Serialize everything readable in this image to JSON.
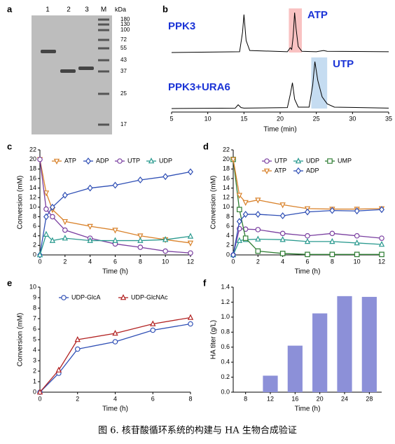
{
  "gel": {
    "label": "a",
    "lanes": [
      "1",
      "2",
      "3",
      "M"
    ],
    "unit": "kDa",
    "markers": [
      180,
      130,
      100,
      72,
      55,
      43,
      37,
      25,
      17
    ]
  },
  "caption": "图 6. 核苷酸循环系统的构建与 HA 生物合成验证",
  "chart_data": [
    {
      "type": "chromatogram",
      "label": "b",
      "xlabel": "Time (min)",
      "xlim": [
        5,
        35
      ],
      "xticks": [
        5,
        10,
        15,
        20,
        25,
        30,
        35
      ],
      "series": [
        {
          "name": "PPK3",
          "color": "#000000",
          "x": [
            5,
            14.4,
            14.8,
            15,
            15.3,
            15.8,
            21,
            21.4,
            21.6,
            21.8,
            22,
            22.2,
            22.5,
            23,
            25,
            26,
            26.5,
            35
          ],
          "values": [
            0,
            0.02,
            0.5,
            0.95,
            0.3,
            0.05,
            0.02,
            0.12,
            0.08,
            0.4,
            1.0,
            0.6,
            0.15,
            0.03,
            0.02,
            0.05,
            0.03,
            0.02
          ]
        },
        {
          "name": "PPK3+URA6",
          "color": "#000000",
          "x": [
            5,
            13.8,
            14.2,
            14.6,
            15,
            21,
            21.4,
            21.7,
            22,
            22.5,
            24,
            24.5,
            24.8,
            25.2,
            25.8,
            26.5,
            27.5,
            35
          ],
          "values": [
            0,
            0.01,
            0.08,
            0.02,
            0.01,
            0.02,
            0.3,
            0.55,
            0.2,
            0.03,
            0.03,
            0.5,
            1.0,
            0.6,
            0.25,
            0.1,
            0.03,
            0.01
          ]
        }
      ],
      "highlights": [
        {
          "label": "ATP",
          "xrange": [
            21.2,
            23
          ],
          "color": "#f7b3b3"
        },
        {
          "label": "UTP",
          "xrange": [
            24.3,
            26.5
          ],
          "color": "#b7d3ee"
        }
      ]
    },
    {
      "type": "line",
      "label": "c",
      "xlabel": "Time (h)",
      "ylabel": "Conversion (mM)",
      "xlim": [
        0,
        12
      ],
      "xticks": [
        0,
        2,
        4,
        6,
        8,
        10,
        12
      ],
      "ylim": [
        0,
        22
      ],
      "yticks": [
        0,
        2,
        4,
        6,
        8,
        10,
        12,
        14,
        16,
        18,
        20,
        22
      ],
      "x": [
        0,
        0.5,
        1,
        2,
        4,
        6,
        8,
        10,
        12
      ],
      "series": [
        {
          "name": "ATP",
          "color": "#d9822b",
          "marker": "triangle-down",
          "values": [
            20,
            13,
            9.5,
            7,
            6,
            5.2,
            4,
            3.2,
            2.5
          ]
        },
        {
          "name": "ADP",
          "color": "#2f4fb5",
          "marker": "diamond",
          "values": [
            0,
            8,
            10,
            12.5,
            14,
            14.6,
            15.7,
            16.4,
            17.4
          ]
        },
        {
          "name": "UTP",
          "color": "#7a3fa0",
          "marker": "circle",
          "values": [
            20,
            9.6,
            8,
            5.2,
            3.5,
            2.3,
            1.6,
            0.8,
            0.4
          ]
        },
        {
          "name": "UDP",
          "color": "#2a9a8f",
          "marker": "triangle-up",
          "values": [
            0,
            4.3,
            3,
            3.5,
            3,
            3,
            3,
            3.2,
            3.9
          ]
        }
      ]
    },
    {
      "type": "line",
      "label": "d",
      "xlabel": "Time (h)",
      "ylabel": "Conversion (mM)",
      "xlim": [
        0,
        12
      ],
      "xticks": [
        0,
        2,
        4,
        6,
        8,
        10,
        12
      ],
      "ylim": [
        0,
        22
      ],
      "yticks": [
        0,
        2,
        4,
        6,
        8,
        10,
        12,
        14,
        16,
        18,
        20,
        22
      ],
      "x": [
        0,
        0.5,
        1,
        2,
        4,
        6,
        8,
        10,
        12
      ],
      "series": [
        {
          "name": "UTP",
          "color": "#7a3fa0",
          "marker": "circle",
          "values": [
            0,
            5.5,
            5.4,
            5.3,
            4.5,
            4,
            4.5,
            4,
            3.5
          ]
        },
        {
          "name": "UDP",
          "color": "#2a9a8f",
          "marker": "triangle-up",
          "values": [
            0,
            3,
            3.2,
            3.3,
            3.2,
            2.8,
            2.8,
            2.5,
            2.2
          ]
        },
        {
          "name": "UMP",
          "color": "#2e7d32",
          "marker": "square",
          "values": [
            20,
            9.5,
            3.5,
            0.8,
            0.3,
            0.1,
            0.1,
            0.1,
            0.1
          ]
        },
        {
          "name": "ATP",
          "color": "#d9822b",
          "marker": "triangle-down",
          "values": [
            20,
            12.5,
            11,
            11.5,
            10.5,
            9.7,
            9.6,
            9.6,
            9.7
          ]
        },
        {
          "name": "ADP",
          "color": "#2f4fb5",
          "marker": "diamond",
          "values": [
            0,
            7,
            8.5,
            8.5,
            8.2,
            9,
            9.3,
            9.2,
            9.5
          ]
        }
      ]
    },
    {
      "type": "line",
      "label": "e",
      "xlabel": "Time (h)",
      "ylabel": "Conversion (mM)",
      "xlim": [
        0,
        8
      ],
      "xticks": [
        0,
        2,
        4,
        6,
        8
      ],
      "ylim": [
        0,
        10
      ],
      "yticks": [
        0,
        1,
        2,
        3,
        4,
        5,
        6,
        7,
        8,
        9,
        10
      ],
      "x": [
        0,
        1,
        2,
        4,
        6,
        8
      ],
      "series": [
        {
          "name": "UDP-GlcA",
          "color": "#2f4fb5",
          "marker": "circle",
          "values": [
            0,
            1.8,
            4.1,
            4.8,
            5.9,
            6.5
          ]
        },
        {
          "name": "UDP-GlcNAc",
          "color": "#b22222",
          "marker": "triangle-up",
          "values": [
            0,
            2.1,
            5,
            5.6,
            6.5,
            7.1
          ]
        }
      ]
    },
    {
      "type": "bar",
      "label": "f",
      "xlabel": "Time (h)",
      "ylabel": "HA titer (g/L)",
      "color": "#8c90d8",
      "categories": [
        "8",
        "12",
        "16",
        "20",
        "24",
        "28"
      ],
      "values": [
        0,
        0.22,
        0.62,
        1.05,
        1.28,
        1.27
      ],
      "ylim": [
        0,
        1.4
      ],
      "yticks": [
        {
          "value": 0,
          "label": "0.0"
        },
        {
          "value": 0.2,
          "label": "0.2"
        },
        {
          "value": 0.4,
          "label": "0.4"
        },
        {
          "value": 0.6,
          "label": "0.6"
        },
        {
          "value": 0.8,
          "label": "0.8"
        },
        {
          "value": 1.0,
          "label": "1.0"
        },
        {
          "value": 1.2,
          "label": "1.2"
        },
        {
          "value": 1.4,
          "label": "1.4"
        }
      ]
    }
  ]
}
